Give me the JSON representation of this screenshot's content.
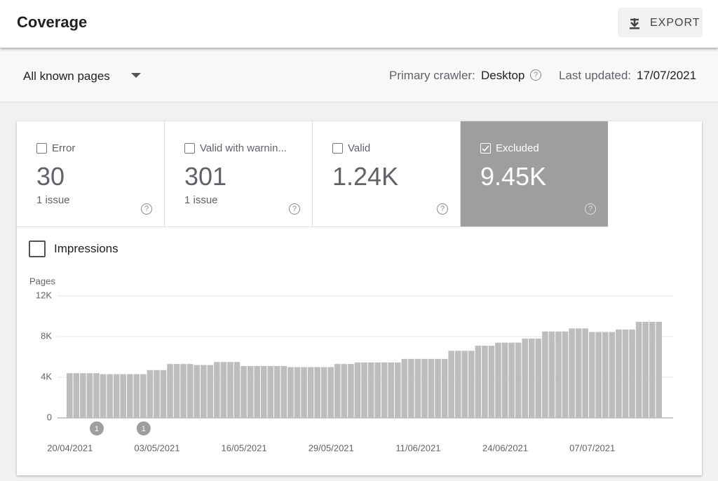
{
  "header": {
    "title": "Coverage",
    "export": "EXPORT"
  },
  "toolbar": {
    "filter": "All known pages",
    "crawler_label": "Primary crawler:",
    "crawler": "Desktop",
    "updated_label": "Last updated:",
    "updated": "17/07/2021"
  },
  "tiles": [
    {
      "label": "Error",
      "value": "30",
      "sub": "1 issue"
    },
    {
      "label": "Valid with warnin...",
      "value": "301",
      "sub": "1 issue"
    },
    {
      "label": "Valid",
      "value": "1.24K"
    },
    {
      "label": "Excluded",
      "value": "9.45K"
    }
  ],
  "impressions": "Impressions",
  "chart_data": {
    "type": "bar",
    "ylabel": "Pages",
    "color": "#bdbdbd",
    "grid": true,
    "ylim": [
      0,
      12000
    ],
    "yticks": [
      0,
      {
        "value": 4000,
        "label": "4K"
      },
      {
        "value": 8000,
        "label": "8K"
      },
      {
        "value": 12000,
        "label": "12K"
      }
    ],
    "categories": [
      "20/04/2021",
      null,
      null,
      null,
      null,
      null,
      null,
      null,
      null,
      null,
      null,
      null,
      null,
      "03/05/2021",
      null,
      null,
      null,
      null,
      null,
      null,
      null,
      null,
      null,
      null,
      null,
      null,
      "16/05/2021",
      null,
      null,
      null,
      null,
      null,
      null,
      null,
      null,
      null,
      null,
      null,
      null,
      "29/05/2021",
      null,
      null,
      null,
      null,
      null,
      null,
      null,
      null,
      null,
      null,
      null,
      null,
      "11/06/2021",
      null,
      null,
      null,
      null,
      null,
      null,
      null,
      null,
      null,
      null,
      null,
      null,
      "24/06/2021",
      null,
      null,
      null,
      null,
      null,
      null,
      null,
      null,
      null,
      null,
      null,
      null,
      "07/07/2021",
      null,
      null,
      null,
      null,
      null,
      null,
      null,
      null,
      null,
      null
    ],
    "values": [
      4400,
      4400,
      4400,
      4400,
      4400,
      4300,
      4300,
      4300,
      4300,
      4300,
      4300,
      4300,
      4700,
      4700,
      4700,
      5300,
      5300,
      5300,
      5300,
      5200,
      5200,
      5200,
      5500,
      5500,
      5500,
      5500,
      5100,
      5100,
      5100,
      5100,
      5100,
      5100,
      5100,
      5000,
      5000,
      5000,
      5000,
      5000,
      5000,
      5000,
      5300,
      5300,
      5300,
      5450,
      5450,
      5450,
      5450,
      5450,
      5450,
      5450,
      5800,
      5800,
      5800,
      5800,
      5800,
      5800,
      5800,
      6600,
      6600,
      6600,
      6600,
      7100,
      7100,
      7100,
      7400,
      7400,
      7400,
      7400,
      7800,
      7800,
      7800,
      8500,
      8500,
      8500,
      8500,
      8800,
      8800,
      8800,
      8450,
      8450,
      8450,
      8450,
      8700,
      8700,
      8700,
      9450,
      9450,
      9450,
      9450
    ],
    "annotations": [
      null,
      null,
      null,
      null,
      "1",
      null,
      null,
      null,
      null,
      null,
      null,
      "1",
      null,
      null,
      null,
      null,
      null,
      null,
      null,
      null,
      null,
      null,
      null,
      null,
      null,
      null,
      null,
      null,
      null,
      null,
      null,
      null,
      null,
      null,
      null,
      null,
      null,
      null,
      null,
      null,
      null,
      null,
      null,
      null,
      null,
      null,
      null,
      null,
      null,
      null,
      null,
      null,
      null,
      null,
      null,
      null,
      null,
      null,
      null,
      null,
      null,
      null,
      null,
      null,
      null,
      null,
      null,
      null,
      null,
      null,
      null,
      null,
      null,
      null,
      null,
      null,
      null,
      null,
      null,
      null,
      null,
      null,
      null,
      null,
      null,
      null,
      null,
      null,
      null
    ]
  }
}
